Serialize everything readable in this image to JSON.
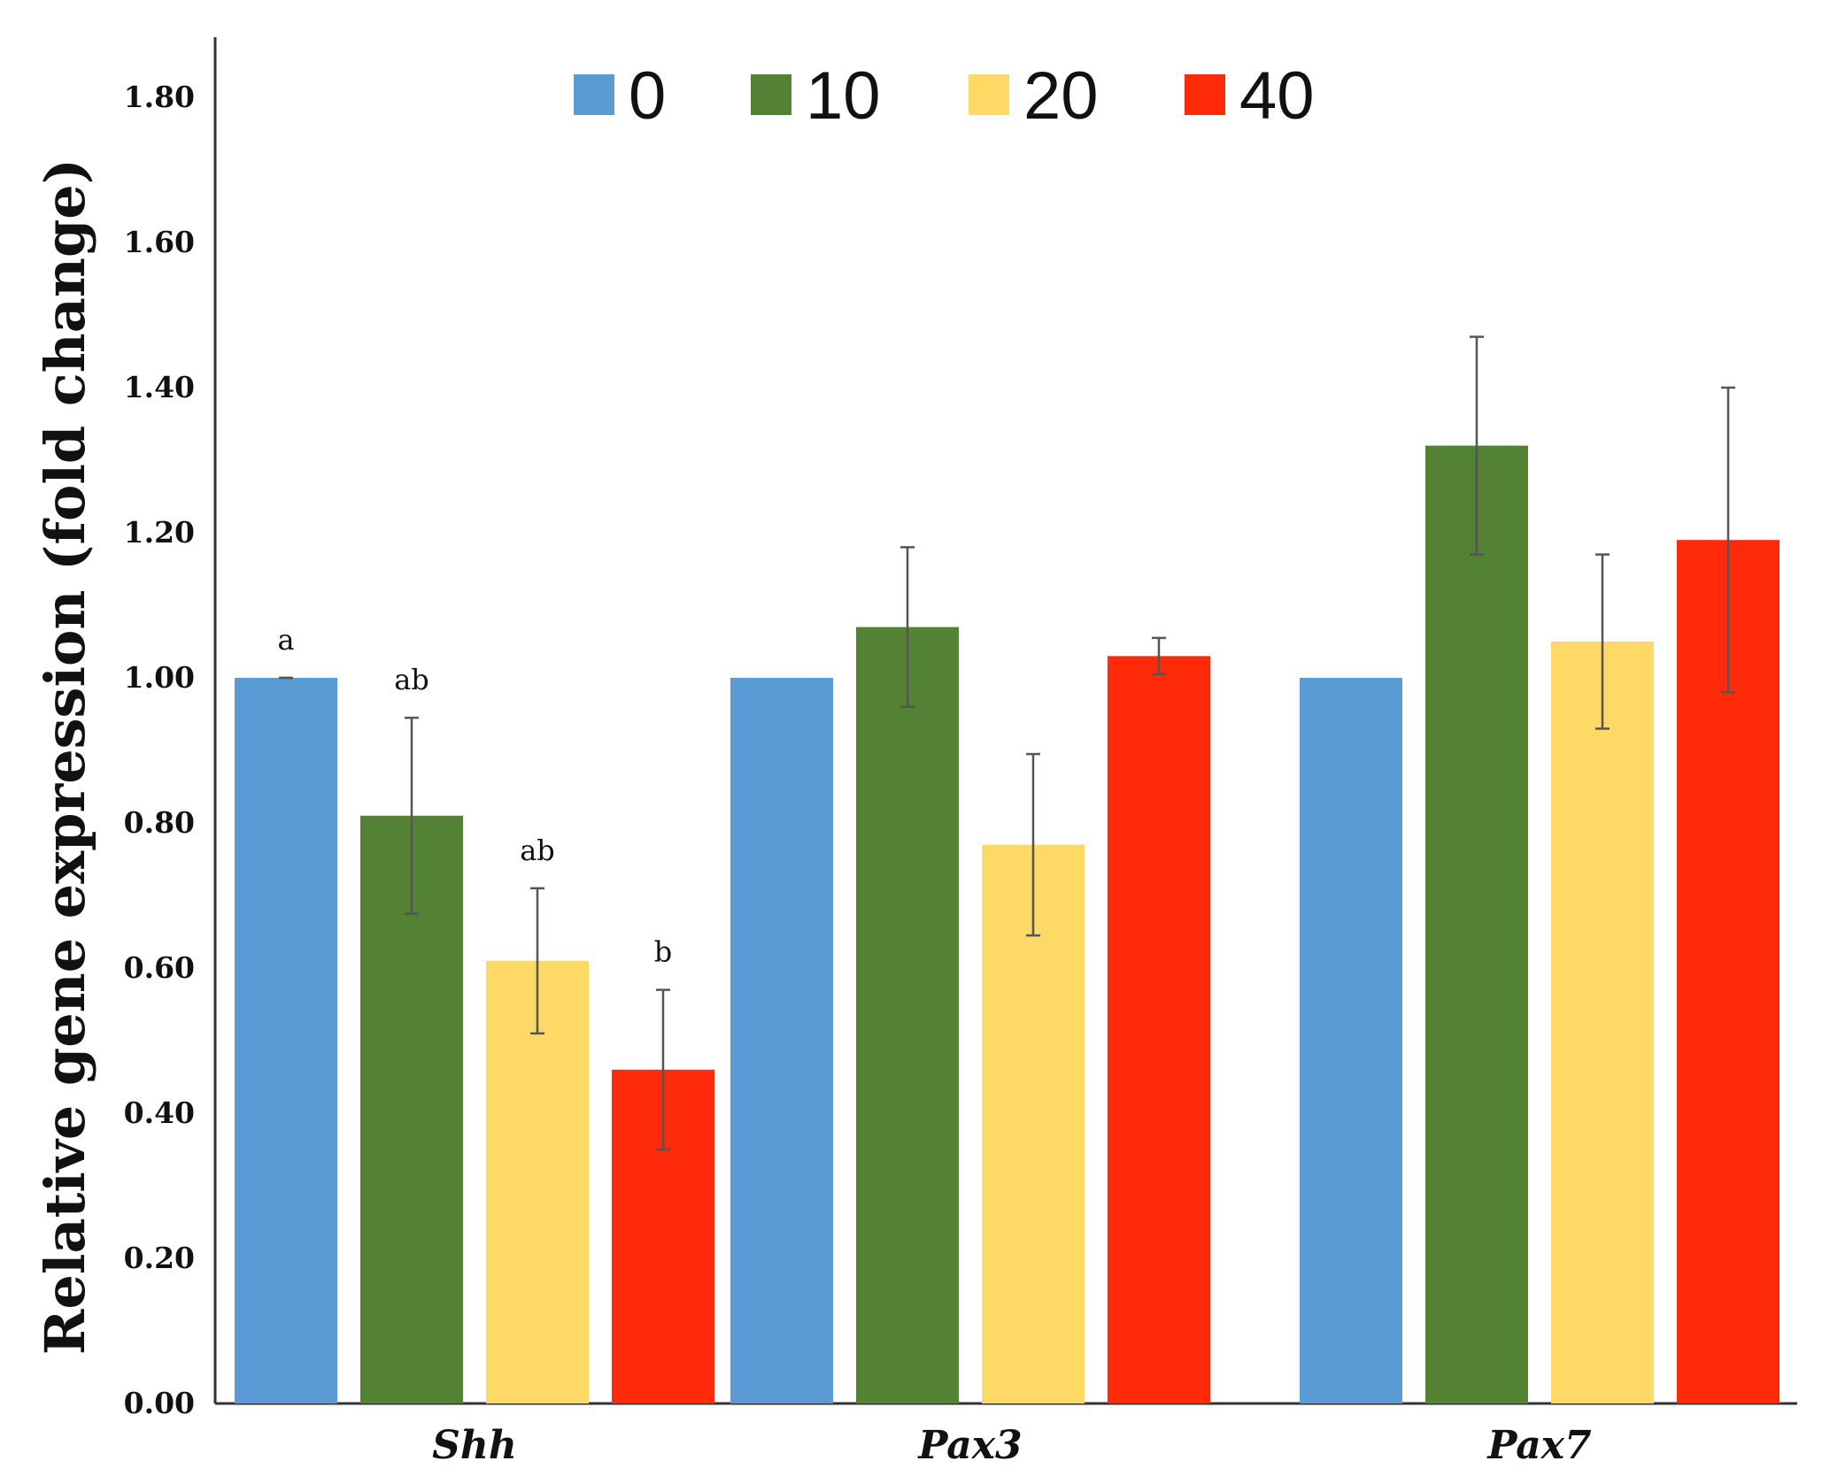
{
  "chart_data": {
    "type": "bar",
    "title": "",
    "xlabel": "",
    "ylabel": "Relative gene expression (fold change)",
    "ylim": [
      0,
      1.8
    ],
    "yticks": [
      "0.00",
      "0.20",
      "0.40",
      "0.60",
      "0.80",
      "1.00",
      "1.20",
      "1.40",
      "1.60",
      "1.80"
    ],
    "categories": [
      "Shh",
      "Pax3",
      "Pax7"
    ],
    "legend_position": "top-center",
    "grid": false,
    "series": [
      {
        "name": "0",
        "color": "#5b9bd5",
        "values": [
          1.0,
          1.0,
          1.0
        ],
        "errors": [
          0.0,
          null,
          null
        ]
      },
      {
        "name": "10",
        "color": "#548235",
        "values": [
          0.81,
          1.07,
          1.32
        ],
        "errors": [
          0.135,
          0.11,
          0.15
        ]
      },
      {
        "name": "20",
        "color": "#ffd966",
        "values": [
          0.61,
          0.77,
          1.05
        ],
        "errors": [
          0.1,
          0.125,
          0.12
        ]
      },
      {
        "name": "40",
        "color": "#ff2a0a",
        "values": [
          0.46,
          1.03,
          1.19
        ],
        "errors": [
          0.11,
          0.025,
          0.21
        ]
      }
    ],
    "annotations": [
      {
        "text": "a",
        "category": "Shh",
        "series": "0"
      },
      {
        "text": "ab",
        "category": "Shh",
        "series": "10"
      },
      {
        "text": "ab",
        "category": "Shh",
        "series": "20"
      },
      {
        "text": "b",
        "category": "Shh",
        "series": "40"
      }
    ]
  }
}
